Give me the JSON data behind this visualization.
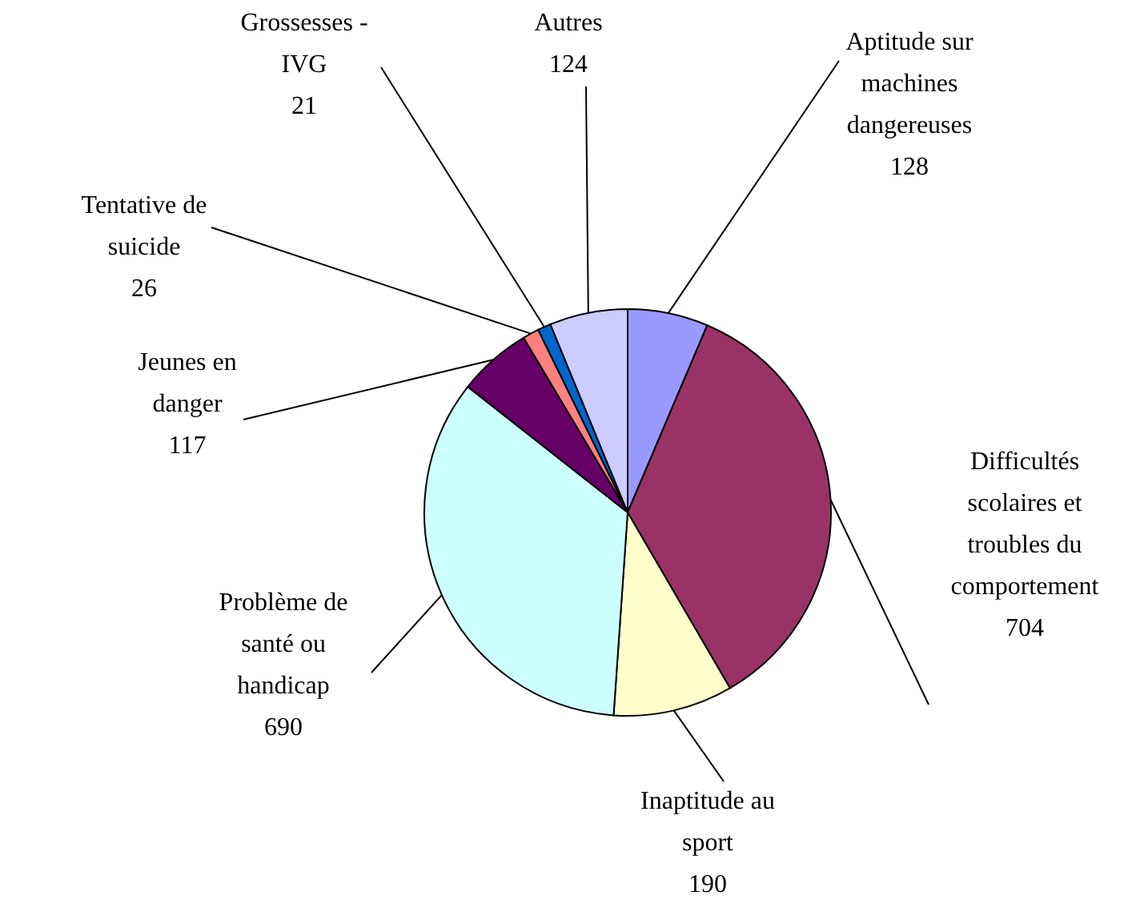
{
  "chart_data": {
    "type": "pie",
    "categories": [
      "Aptitude sur machines dangereuses",
      "Difficultés scolaires et troubles du comportement",
      "Inaptitude au sport",
      "Problème de santé ou handicap",
      "Jeunes en danger",
      "Tentative de suicide",
      "Grossesses - IVG",
      "Autres"
    ],
    "values": [
      128,
      704,
      190,
      690,
      117,
      26,
      21,
      124
    ],
    "colors": [
      "#9999ff",
      "#993366",
      "#ffffcc",
      "#ccffff",
      "#660066",
      "#ff8080",
      "#0066cc",
      "#ccccff"
    ],
    "data_labels": true
  }
}
